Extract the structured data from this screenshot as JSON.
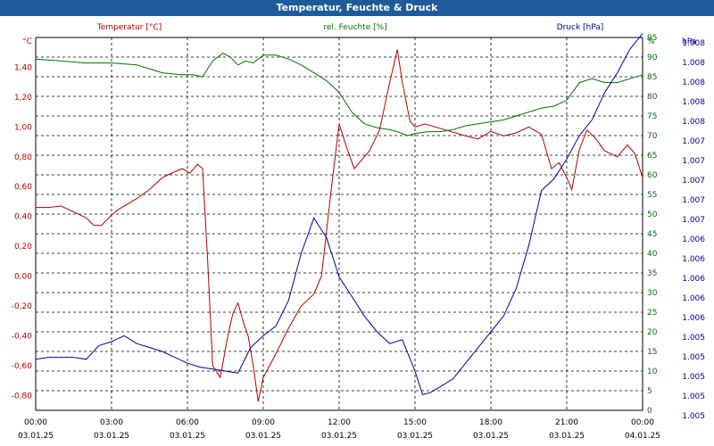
{
  "title": "Temperatur, Feuchte & Druck",
  "chart_data": {
    "type": "line",
    "title": "Temperatur, Feuchte & Druck",
    "grid": true,
    "colors": {
      "temp": "#b00000",
      "hum": "#007000",
      "press": "#00009a",
      "grid": "#000000"
    },
    "axes": {
      "temp": {
        "label": "Temperatur [°C]",
        "unit": "°C",
        "min": -0.9,
        "max": 1.6,
        "ticks": [
          "1,40",
          "1,20",
          "1,00",
          "0,80",
          "0,60",
          "0,40",
          "0,20",
          "0,00",
          "-0,20",
          "-0,40",
          "-0,60",
          "-0,80"
        ],
        "tick_values": [
          1.4,
          1.2,
          1.0,
          0.8,
          0.6,
          0.4,
          0.2,
          0.0,
          -0.2,
          -0.4,
          -0.6,
          -0.8
        ]
      },
      "hum": {
        "label": "rel. Feuchte [%]",
        "unit": "%",
        "min": 0,
        "max": 95,
        "ticks": [
          "95",
          "90",
          "85",
          "80",
          "75",
          "70",
          "65",
          "60",
          "55",
          "50",
          "45",
          "40",
          "35",
          "30",
          "25",
          "20",
          "15",
          "10",
          "5",
          "0"
        ],
        "tick_values": [
          95,
          90,
          85,
          80,
          75,
          70,
          65,
          60,
          55,
          50,
          45,
          40,
          35,
          30,
          25,
          20,
          15,
          10,
          5,
          0
        ]
      },
      "press": {
        "label": "Druck [hPa]",
        "unit": "hPa",
        "ticks": [
          "1.008",
          "1.008",
          "1.008",
          "1.008",
          "1.008",
          "1.007",
          "1.007",
          "1.007",
          "1.007",
          "1.007",
          "1.006",
          "1.006",
          "1.006",
          "1.006",
          "1.006",
          "1.005",
          "1.005",
          "1.005",
          "1.005",
          "1.005"
        ]
      }
    },
    "x_ticks": [
      {
        "time": "00:00",
        "date": "03.01.25",
        "hour": 0
      },
      {
        "time": "03:00",
        "date": "03.01.25",
        "hour": 3
      },
      {
        "time": "06:00",
        "date": "03.01.25",
        "hour": 6
      },
      {
        "time": "09:00",
        "date": "03.01.25",
        "hour": 9
      },
      {
        "time": "12:00",
        "date": "03.01.25",
        "hour": 12
      },
      {
        "time": "15:00",
        "date": "03.01.25",
        "hour": 15
      },
      {
        "time": "18:00",
        "date": "03.01.25",
        "hour": 18
      },
      {
        "time": "21:00",
        "date": "03.01.25",
        "hour": 21
      },
      {
        "time": "00:00",
        "date": "04.01.25",
        "hour": 24
      }
    ],
    "series": [
      {
        "name": "Temperatur [°C]",
        "axis": "temp",
        "x": [
          0,
          0.5,
          1,
          1.5,
          2,
          2.3,
          2.6,
          3,
          3.3,
          3.6,
          4,
          4.5,
          5,
          5.5,
          5.8,
          6.1,
          6.4,
          6.6,
          6.8,
          7,
          7.3,
          7.6,
          7.8,
          8,
          8.2,
          8.4,
          8.6,
          8.8,
          9,
          9.5,
          10,
          10.5,
          11,
          11.3,
          11.7,
          12,
          12.3,
          12.6,
          12.9,
          13.2,
          13.6,
          14,
          14.3,
          14.5,
          14.8,
          15,
          15.4,
          15.8,
          16.2,
          16.6,
          17,
          17.5,
          18,
          18.5,
          19,
          19.5,
          20,
          20.4,
          20.7,
          21,
          21.2,
          21.5,
          21.8,
          22.1,
          22.5,
          23,
          23.4,
          23.7,
          24
        ],
        "values": [
          0.46,
          0.46,
          0.47,
          0.43,
          0.39,
          0.34,
          0.34,
          0.41,
          0.45,
          0.48,
          0.52,
          0.58,
          0.66,
          0.7,
          0.72,
          0.69,
          0.75,
          0.72,
          0.1,
          -0.6,
          -0.68,
          -0.4,
          -0.25,
          -0.18,
          -0.3,
          -0.4,
          -0.6,
          -0.84,
          -0.68,
          -0.52,
          -0.35,
          -0.2,
          -0.12,
          0.0,
          0.6,
          1.02,
          0.86,
          0.72,
          0.78,
          0.84,
          0.98,
          1.3,
          1.52,
          1.3,
          1.04,
          1.0,
          1.02,
          1.0,
          0.98,
          0.96,
          0.94,
          0.92,
          0.97,
          0.94,
          0.96,
          1.0,
          0.95,
          0.72,
          0.76,
          0.66,
          0.58,
          0.85,
          0.98,
          0.93,
          0.84,
          0.8,
          0.88,
          0.82,
          0.66
        ]
      },
      {
        "name": "rel. Feuchte [%]",
        "axis": "hum",
        "x": [
          0,
          1,
          2,
          3,
          4,
          5,
          5.7,
          6.2,
          6.6,
          7,
          7.4,
          7.7,
          8,
          8.3,
          8.6,
          9,
          9.5,
          10,
          10.5,
          11,
          11.5,
          12,
          12.5,
          13,
          13.5,
          14,
          14.3,
          14.7,
          15,
          15.5,
          16,
          16.5,
          17,
          17.5,
          18,
          18.5,
          19,
          19.5,
          20,
          20.5,
          21,
          21.5,
          22,
          22.5,
          23,
          23.5,
          24
        ],
        "values": [
          89.5,
          89,
          88.5,
          88.5,
          88,
          86,
          85.5,
          85.5,
          85,
          89,
          91,
          90,
          88,
          89,
          88.5,
          90.5,
          90.5,
          89.5,
          88,
          86,
          84,
          81,
          76,
          73,
          72,
          71.5,
          71,
          70,
          70.5,
          71,
          71,
          71.5,
          72.5,
          73,
          73.5,
          74,
          75,
          76,
          77,
          77.5,
          79,
          83.5,
          84.5,
          83.5,
          83.5,
          84.5,
          85.5
        ]
      },
      {
        "name": "Druck [hPa]",
        "axis": "press",
        "x": [
          0,
          0.5,
          1,
          1.5,
          2,
          2.5,
          3,
          3.5,
          4,
          4.5,
          5,
          5.5,
          6,
          6.5,
          7,
          7.5,
          8,
          8.5,
          9,
          9.5,
          10,
          10.5,
          11,
          11.5,
          12,
          12.5,
          13,
          13.5,
          14,
          14.5,
          15,
          15.3,
          15.6,
          16,
          16.5,
          17,
          17.5,
          18,
          18.5,
          19,
          19.5,
          20,
          20.5,
          21,
          21.5,
          22,
          22.5,
          23,
          23.5,
          24
        ],
        "values": [
          13,
          13.5,
          13.5,
          13.5,
          13,
          16.5,
          17.5,
          19,
          17,
          16,
          15,
          13.5,
          12,
          11,
          10.5,
          10,
          9.5,
          16,
          19,
          21.5,
          28,
          40,
          49,
          44,
          34,
          29,
          24,
          20,
          17,
          18,
          10,
          4,
          4.5,
          6,
          8,
          12,
          16,
          20,
          24,
          31,
          42,
          56,
          59,
          64,
          70,
          74,
          81,
          86,
          92,
          96
        ]
      }
    ]
  }
}
